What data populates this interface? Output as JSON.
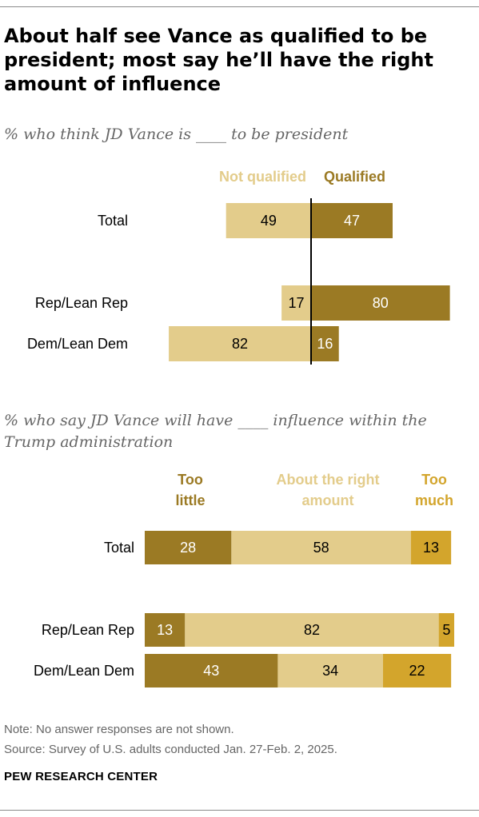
{
  "title": "About half see Vance as qualified to be president; most say he’ll have the right amount of influence",
  "chart_data": [
    {
      "type": "bar",
      "orientation": "horizontal-diverging",
      "subtitle": "% who think JD Vance is ____ to be president",
      "categories": [
        "Total",
        "Rep/Lean Rep",
        "Dem/Lean Dem"
      ],
      "series": [
        {
          "name": "Not qualified",
          "values": [
            49,
            17,
            82
          ],
          "color": "#e3cc8b"
        },
        {
          "name": "Qualified",
          "values": [
            47,
            80,
            16
          ],
          "color": "#9b7a24"
        }
      ]
    },
    {
      "type": "bar",
      "orientation": "horizontal-stacked",
      "subtitle": "% who say JD Vance will have ____ influence within the Trump administration",
      "categories": [
        "Total",
        "Rep/Lean Rep",
        "Dem/Lean Dem"
      ],
      "series": [
        {
          "name": "Too little",
          "values": [
            28,
            13,
            43
          ],
          "color": "#9b7a24"
        },
        {
          "name": "About the right amount",
          "values": [
            58,
            82,
            34
          ],
          "color": "#e3cc8b"
        },
        {
          "name": "Too much",
          "values": [
            13,
            5,
            22
          ],
          "color": "#d3a52c"
        }
      ]
    }
  ],
  "notes": {
    "note": "Note: No answer responses are not shown.",
    "source": "Source: Survey of U.S. adults conducted Jan. 27-Feb. 2, 2025.",
    "org": "PEW RESEARCH CENTER"
  }
}
